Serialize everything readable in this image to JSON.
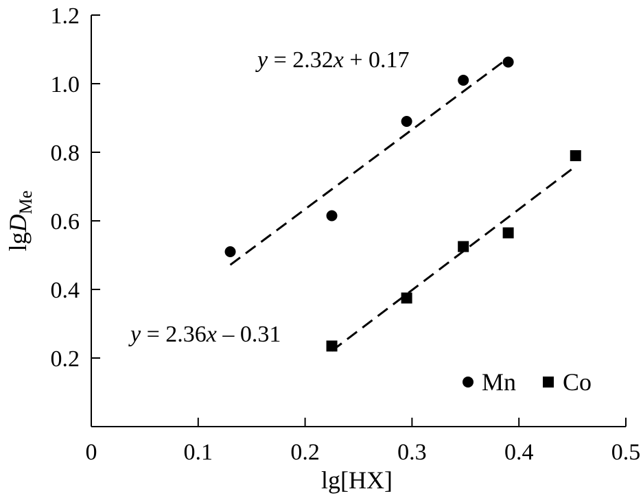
{
  "chart_data": {
    "type": "scatter",
    "xlabel": "lg[HX]",
    "ylabel": {
      "base": "lg",
      "var": "D",
      "sub": "Me"
    },
    "xlim": [
      0,
      0.5
    ],
    "ylim": [
      0,
      1.2
    ],
    "x_ticks": [
      0,
      0.1,
      0.2,
      0.3,
      0.4,
      0.5
    ],
    "x_tick_labels": [
      "0",
      "0.1",
      "0.2",
      "0.3",
      "0.4",
      "0.5"
    ],
    "y_ticks": [
      0.2,
      0.4,
      0.6,
      0.8,
      1.0,
      1.2
    ],
    "y_tick_labels": [
      "0.2",
      "0.4",
      "0.6",
      "0.8",
      "1.0",
      "1.2"
    ],
    "grid": false,
    "legend_position": "bottom-right",
    "series": [
      {
        "name": "Mn",
        "marker": "circle",
        "color": "#000000",
        "x": [
          0.13,
          0.225,
          0.295,
          0.348,
          0.39
        ],
        "y": [
          0.51,
          0.615,
          0.89,
          1.01,
          1.063
        ],
        "fit": {
          "slope": 2.32,
          "intercept": 0.17,
          "x_range": [
            0.13,
            0.39
          ]
        },
        "equation": {
          "prefix": "y",
          "mid": " = 2.32",
          "var": "x",
          "suffix": " + 0.17"
        }
      },
      {
        "name": "Co",
        "marker": "square",
        "color": "#000000",
        "x": [
          0.225,
          0.295,
          0.348,
          0.39,
          0.453
        ],
        "y": [
          0.235,
          0.375,
          0.525,
          0.565,
          0.79
        ],
        "fit": {
          "slope": 2.36,
          "intercept": -0.31,
          "x_range": [
            0.225,
            0.453
          ]
        },
        "equation": {
          "prefix": "y",
          "mid": " = 2.36",
          "var": "x",
          "suffix": " – 0.31"
        }
      }
    ]
  }
}
